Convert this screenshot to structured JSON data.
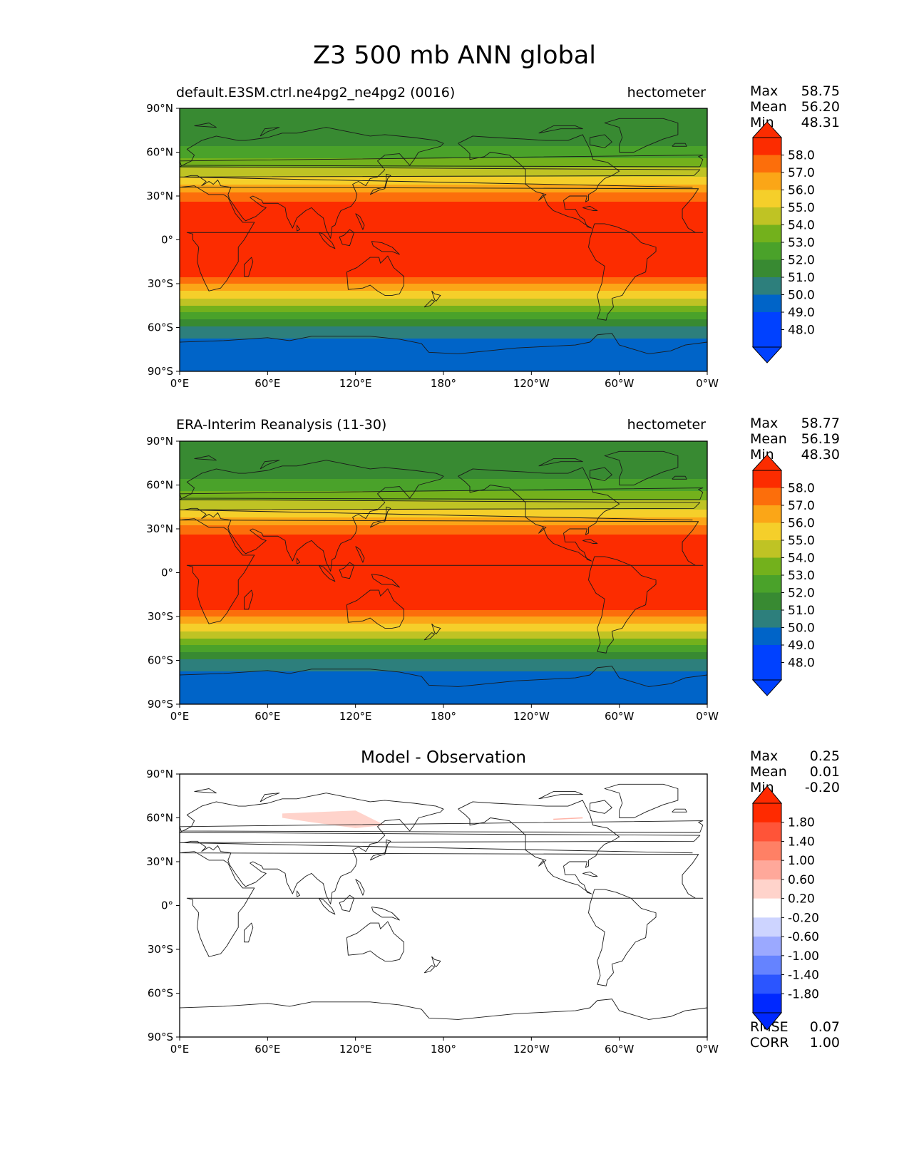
{
  "title": "Z3 500 mb ANN global",
  "colors": {
    "z3_levels": [
      "#0041ff",
      "#0064c8",
      "#2d7f7c",
      "#388a32",
      "#4aa22a",
      "#73b11c",
      "#bfc324",
      "#f5cf2a",
      "#fba617",
      "#fc6e0b",
      "#fc2c00"
    ],
    "diff_levels": [
      "#0028ff",
      "#2b55ff",
      "#6583ff",
      "#9ba9ff",
      "#cdd4ff",
      "#ffffff",
      "#ffd3cb",
      "#ffa89a",
      "#ff8065",
      "#ff5438",
      "#ff2a00"
    ],
    "coast": "#1a1a1a"
  },
  "panels": [
    {
      "left_title": "default.E3SM.ctrl.ne4pg2_ne4pg2 (0016)",
      "right_title": "hectometer",
      "stats": [
        {
          "label": "Max",
          "value": "58.75"
        },
        {
          "label": "Mean",
          "value": "56.20"
        },
        {
          "label": "Min",
          "value": "48.31"
        }
      ],
      "colorbar_ticks": [
        "58.0",
        "57.0",
        "56.0",
        "55.0",
        "54.0",
        "53.0",
        "52.0",
        "51.0",
        "50.0",
        "49.0",
        "48.0"
      ]
    },
    {
      "left_title": "ERA-Interim Reanalysis (11-30)",
      "right_title": "hectometer",
      "stats": [
        {
          "label": "Max",
          "value": "58.77"
        },
        {
          "label": "Mean",
          "value": "56.19"
        },
        {
          "label": "Min",
          "value": "48.30"
        }
      ],
      "colorbar_ticks": [
        "58.0",
        "57.0",
        "56.0",
        "55.0",
        "54.0",
        "53.0",
        "52.0",
        "51.0",
        "50.0",
        "49.0",
        "48.0"
      ]
    },
    {
      "center_title": "Model - Observation",
      "stats": [
        {
          "label": "Max",
          "value": "0.25"
        },
        {
          "label": "Mean",
          "value": "0.01"
        },
        {
          "label": "Min",
          "value": "-0.20"
        }
      ],
      "colorbar_ticks": [
        "1.80",
        "1.40",
        "1.00",
        "0.60",
        "0.20",
        "-0.20",
        "-0.60",
        "-1.00",
        "-1.40",
        "-1.80"
      ],
      "metrics": [
        {
          "label": "RMSE",
          "value": "0.07"
        },
        {
          "label": "CORR",
          "value": "1.00"
        }
      ]
    }
  ],
  "chart_data": [
    {
      "type": "heatmap",
      "title": "default.E3SM.ctrl.ne4pg2_ne4pg2 (0016)",
      "units": "hectometer",
      "x_ticks": [
        "0°E",
        "60°E",
        "120°E",
        "180°",
        "120°W",
        "60°W",
        "0°W"
      ],
      "y_ticks": [
        "90°N",
        "60°N",
        "30°N",
        "0°",
        "30°S",
        "60°S",
        "90°S"
      ],
      "xlim": [
        0,
        360
      ],
      "ylim": [
        -90,
        90
      ],
      "levels": [
        48.0,
        49.0,
        50.0,
        51.0,
        52.0,
        53.0,
        54.0,
        55.0,
        56.0,
        57.0,
        58.0
      ],
      "zonal_profile": {
        "lat": [
          -90,
          -75,
          -66,
          -60,
          -55,
          -50,
          -45,
          -40,
          -35,
          -30,
          -25,
          -20,
          0,
          20,
          25,
          30,
          35,
          40,
          45,
          50,
          55,
          60,
          65,
          70,
          75,
          80,
          85,
          90
        ],
        "value": [
          48.5,
          48.6,
          49.1,
          49.9,
          50.9,
          51.9,
          53.0,
          54.0,
          55.0,
          56.0,
          57.1,
          58.2,
          58.5,
          58.2,
          57.2,
          56.4,
          55.5,
          54.6,
          53.7,
          52.9,
          52.1,
          51.4,
          50.9,
          50.5,
          50.3,
          50.2,
          50.1,
          50.0
        ]
      },
      "max": 58.75,
      "mean": 56.2,
      "min": 48.31
    },
    {
      "type": "heatmap",
      "title": "ERA-Interim Reanalysis (11-30)",
      "units": "hectometer",
      "x_ticks": [
        "0°E",
        "60°E",
        "120°E",
        "180°",
        "120°W",
        "60°W",
        "0°W"
      ],
      "y_ticks": [
        "90°N",
        "60°N",
        "30°N",
        "0°",
        "30°S",
        "60°S",
        "90°S"
      ],
      "xlim": [
        0,
        360
      ],
      "ylim": [
        -90,
        90
      ],
      "levels": [
        48.0,
        49.0,
        50.0,
        51.0,
        52.0,
        53.0,
        54.0,
        55.0,
        56.0,
        57.0,
        58.0
      ],
      "zonal_profile": {
        "lat": [
          -90,
          -75,
          -66,
          -60,
          -55,
          -50,
          -45,
          -40,
          -35,
          -30,
          -25,
          -20,
          0,
          20,
          25,
          30,
          35,
          40,
          45,
          50,
          55,
          60,
          65,
          70,
          75,
          80,
          85,
          90
        ],
        "value": [
          48.5,
          48.6,
          49.1,
          49.9,
          50.9,
          51.9,
          53.0,
          54.0,
          55.0,
          56.0,
          57.1,
          58.2,
          58.5,
          58.2,
          57.2,
          56.4,
          55.5,
          54.6,
          53.7,
          52.9,
          52.1,
          51.4,
          50.9,
          50.5,
          50.3,
          50.2,
          50.1,
          50.0
        ]
      },
      "max": 58.77,
      "mean": 56.19,
      "min": 48.3
    },
    {
      "type": "heatmap",
      "title": "Model - Observation",
      "x_ticks": [
        "0°E",
        "60°E",
        "120°E",
        "180°",
        "120°W",
        "60°W",
        "0°W"
      ],
      "y_ticks": [
        "90°N",
        "60°N",
        "30°N",
        "0°",
        "30°S",
        "60°S",
        "90°S"
      ],
      "xlim": [
        0,
        360
      ],
      "ylim": [
        -90,
        90
      ],
      "levels": [
        -1.8,
        -1.4,
        -1.0,
        -0.6,
        -0.2,
        0.2,
        0.6,
        1.0,
        1.4,
        1.8
      ],
      "anomalies": [
        {
          "lon": [
            70,
            120,
            130,
            140,
            120,
            90,
            70
          ],
          "lat": [
            63,
            65,
            60,
            55,
            53,
            57,
            60
          ],
          "value": 0.25
        },
        {
          "lon": [
            255,
            275
          ],
          "lat": [
            59,
            60
          ],
          "value": 0.22
        }
      ],
      "max": 0.25,
      "mean": 0.01,
      "min": -0.2,
      "rmse": 0.07,
      "corr": 1.0
    }
  ]
}
